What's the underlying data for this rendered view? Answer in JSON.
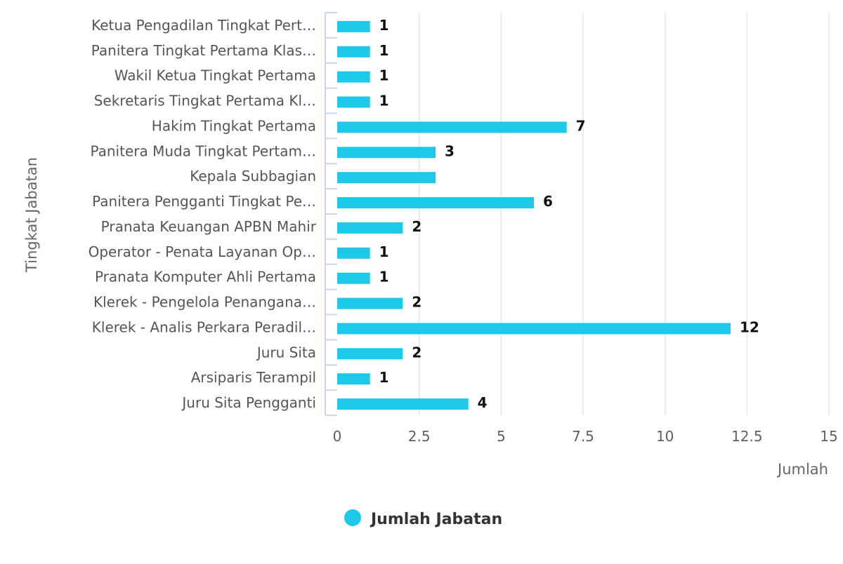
{
  "chart_data": {
    "type": "bar",
    "orientation": "horizontal",
    "categories": [
      "Ketua Pengadilan Tingkat Pert…",
      "Panitera Tingkat Pertama Klas…",
      "Wakil Ketua Tingkat Pertama",
      "Sekretaris Tingkat Pertama Kl…",
      "Hakim Tingkat Pertama",
      "Panitera Muda Tingkat Pertam…",
      "Kepala Subbagian",
      "Panitera Pengganti Tingkat Pe…",
      "Pranata Keuangan APBN Mahir",
      "Operator - Penata Layanan Op…",
      "Pranata Komputer Ahli Pertama",
      "Klerek - Pengelola Penangana…",
      "Klerek - Analis Perkara Peradil…",
      "Juru Sita",
      "Arsiparis Terampil",
      "Juru Sita Pengganti"
    ],
    "series": [
      {
        "name": "Jumlah Jabatan",
        "values": [
          1,
          1,
          1,
          1,
          7,
          3,
          3,
          6,
          2,
          1,
          1,
          2,
          12,
          2,
          1,
          4
        ],
        "data_labels": [
          "1",
          "1",
          "1",
          "1",
          "7",
          "3",
          "",
          "6",
          "2",
          "1",
          "1",
          "2",
          "12",
          "2",
          "1",
          "4"
        ],
        "color": "#1ec8e8"
      }
    ],
    "xlabel": "Jumlah",
    "ylabel": "Tingkat Jabatan",
    "xlim": [
      0,
      15
    ],
    "xticks": [
      "0",
      "2.5",
      "5",
      "7.5",
      "10",
      "12.5",
      "15"
    ],
    "grid": true,
    "legend": "bottom-center"
  },
  "colors": {
    "bar": "#1ec8e8",
    "grid": "#e6e6e6",
    "axis_line": "#ccd6eb"
  }
}
